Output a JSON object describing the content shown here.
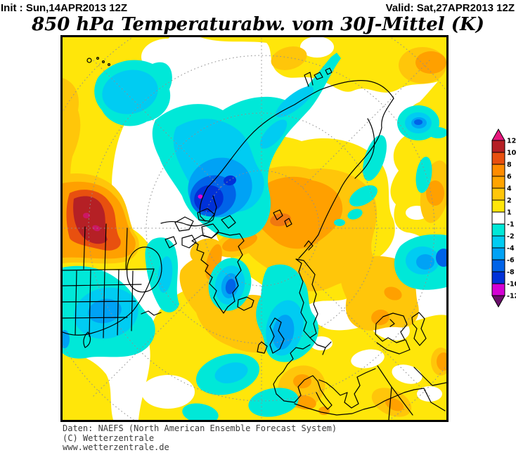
{
  "header": {
    "init_label": "Init : Sun,14APR2013 12Z",
    "valid_label": "Valid: Sat,27APR2013 12Z"
  },
  "title": "850 hPa Temperaturabw. vom 30J-Mittel (K)",
  "footer": {
    "line1": "Daten: NAEFS (North American Ensemble Forecast System)",
    "line2": "(C) Wetterzentrale",
    "line3": "www.wetterzentrale.de"
  },
  "colorbar": {
    "unit": "K",
    "boundary_labels": [
      "12",
      "10",
      "8",
      "6",
      "4",
      "2",
      "1",
      "-1",
      "-2",
      "-4",
      "-6",
      "-8",
      "-10",
      "-12"
    ],
    "segment_colors": [
      "#b52025",
      "#e8500f",
      "#ff8c00",
      "#ffa400",
      "#ffc60a",
      "#ffe60a",
      "#ffffff",
      "#00e8d8",
      "#00ccf2",
      "#00a2f5",
      "#0063e8",
      "#0031d8",
      "#d400d4"
    ],
    "arrow_top_color": "#e8187e",
    "arrow_bottom_color": "#6a0d6a"
  },
  "map_palette": {
    "warm_yellow": "#ffe60a",
    "warm_gold": "#ffc60a",
    "warm_orange": "#ffa000",
    "warm_red_orange": "#e8500f",
    "warm_dark_red": "#b52025",
    "warm_extreme": "#cc1764",
    "cold_cyan": "#00e8d8",
    "cold_mid_cyan": "#00ccf2",
    "cold_light_blue": "#00a2f5",
    "cold_blue": "#0063e8",
    "cold_deep_blue": "#0031d8",
    "cold_extreme": "#dc00dc",
    "coastline": "#000000",
    "graticule": "#8f8f8f"
  }
}
